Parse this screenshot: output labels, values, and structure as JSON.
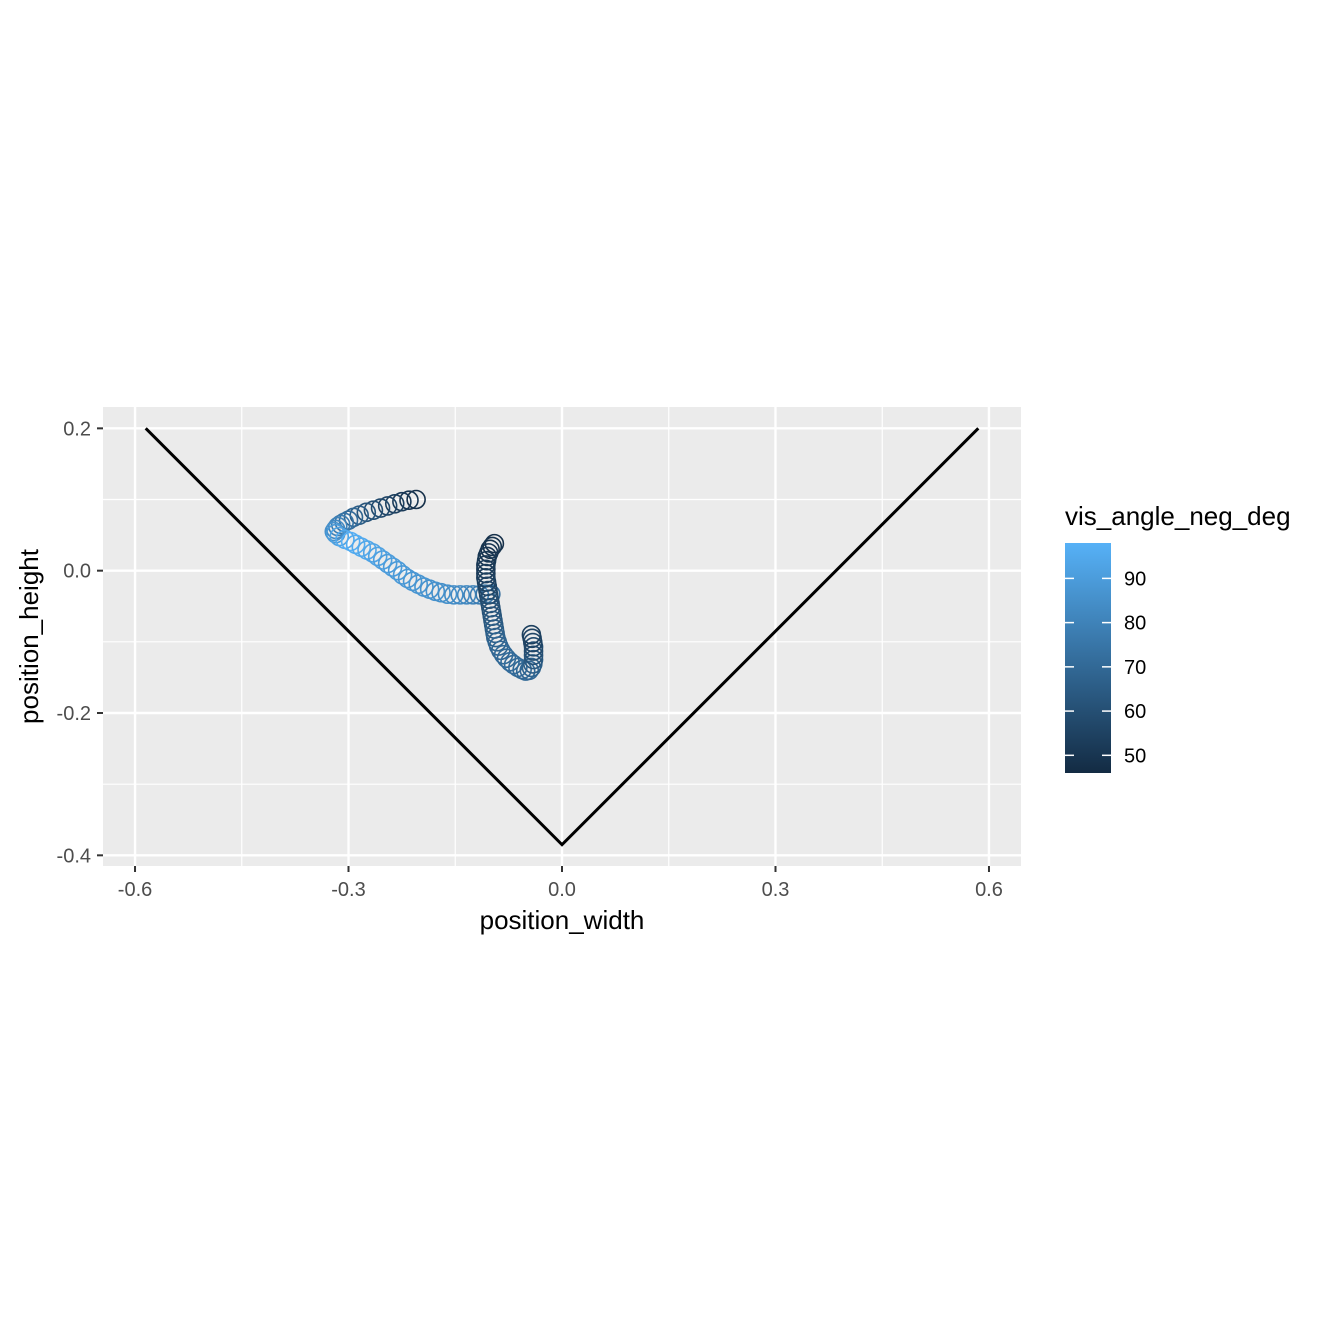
{
  "chart_data": {
    "type": "scatter",
    "title": "",
    "xlabel": "position_width",
    "ylabel": "position_height",
    "xlim": [
      -0.645,
      0.645
    ],
    "ylim": [
      -0.415,
      0.23
    ],
    "x_ticks": [
      -0.6,
      -0.3,
      0.0,
      0.3,
      0.6
    ],
    "x_tick_labels": [
      "-0.6",
      "-0.3",
      "0.0",
      "0.3",
      "0.6"
    ],
    "y_ticks": [
      -0.4,
      -0.2,
      0.0,
      0.2
    ],
    "y_tick_labels": [
      "-0.4",
      "-0.2",
      "0.0",
      "0.2"
    ],
    "grid": true,
    "background": "#ebebeb",
    "legend": {
      "title": "vis_angle_neg_deg",
      "position": "right",
      "type": "colorbar",
      "min": 46,
      "max": 98,
      "breaks": [
        50,
        60,
        70,
        80,
        90
      ],
      "break_labels": [
        "50",
        "60",
        "70",
        "80",
        "90"
      ],
      "color_low": "#132b43",
      "color_high": "#56b1f7"
    },
    "boundary_line": {
      "color": "#000000",
      "points": [
        [
          -0.585,
          0.2
        ],
        [
          0.0,
          -0.385
        ],
        [
          0.585,
          0.2
        ]
      ]
    },
    "points": [
      [
        -0.205,
        0.1,
        48
      ],
      [
        -0.215,
        0.099,
        50
      ],
      [
        -0.225,
        0.097,
        52
      ],
      [
        -0.235,
        0.094,
        54
      ],
      [
        -0.245,
        0.091,
        56
      ],
      [
        -0.255,
        0.088,
        58
      ],
      [
        -0.265,
        0.085,
        60
      ],
      [
        -0.275,
        0.082,
        62
      ],
      [
        -0.285,
        0.078,
        65
      ],
      [
        -0.293,
        0.075,
        68
      ],
      [
        -0.3,
        0.071,
        71
      ],
      [
        -0.306,
        0.068,
        74
      ],
      [
        -0.311,
        0.065,
        77
      ],
      [
        -0.315,
        0.062,
        80
      ],
      [
        -0.318,
        0.058,
        83
      ],
      [
        -0.32,
        0.055,
        86
      ],
      [
        -0.318,
        0.052,
        89
      ],
      [
        -0.313,
        0.048,
        92
      ],
      [
        -0.305,
        0.044,
        95
      ],
      [
        -0.297,
        0.041,
        97
      ],
      [
        -0.29,
        0.037,
        96
      ],
      [
        -0.282,
        0.033,
        95
      ],
      [
        -0.274,
        0.029,
        94
      ],
      [
        -0.266,
        0.025,
        93
      ],
      [
        -0.259,
        0.02,
        92
      ],
      [
        -0.252,
        0.015,
        91
      ],
      [
        -0.245,
        0.01,
        90
      ],
      [
        -0.238,
        0.005,
        90
      ],
      [
        -0.231,
        0.0,
        89
      ],
      [
        -0.224,
        -0.006,
        89
      ],
      [
        -0.217,
        -0.011,
        88
      ],
      [
        -0.21,
        -0.015,
        88
      ],
      [
        -0.202,
        -0.019,
        87
      ],
      [
        -0.194,
        -0.023,
        87
      ],
      [
        -0.186,
        -0.026,
        86
      ],
      [
        -0.178,
        -0.029,
        86
      ],
      [
        -0.17,
        -0.031,
        85
      ],
      [
        -0.161,
        -0.033,
        85
      ],
      [
        -0.152,
        -0.034,
        84
      ],
      [
        -0.143,
        -0.034,
        83
      ],
      [
        -0.134,
        -0.034,
        82
      ],
      [
        -0.125,
        -0.034,
        80
      ],
      [
        -0.116,
        -0.034,
        78
      ],
      [
        -0.108,
        -0.033,
        75
      ],
      [
        -0.1,
        -0.033,
        72
      ],
      [
        -0.095,
        0.038,
        48
      ],
      [
        -0.098,
        0.034,
        49
      ],
      [
        -0.101,
        0.03,
        49
      ],
      [
        -0.103,
        0.025,
        50
      ],
      [
        -0.105,
        0.02,
        50
      ],
      [
        -0.106,
        0.014,
        51
      ],
      [
        -0.107,
        0.008,
        51
      ],
      [
        -0.107,
        0.002,
        52
      ],
      [
        -0.107,
        -0.004,
        52
      ],
      [
        -0.107,
        -0.01,
        53
      ],
      [
        -0.106,
        -0.016,
        54
      ],
      [
        -0.105,
        -0.022,
        55
      ],
      [
        -0.104,
        -0.028,
        56
      ],
      [
        -0.103,
        -0.034,
        57
      ],
      [
        -0.102,
        -0.04,
        58
      ],
      [
        -0.101,
        -0.046,
        59
      ],
      [
        -0.1,
        -0.052,
        60
      ],
      [
        -0.099,
        -0.058,
        61
      ],
      [
        -0.098,
        -0.064,
        62
      ],
      [
        -0.097,
        -0.07,
        63
      ],
      [
        -0.096,
        -0.076,
        64
      ],
      [
        -0.095,
        -0.082,
        65
      ],
      [
        -0.094,
        -0.088,
        66
      ],
      [
        -0.093,
        -0.094,
        67
      ],
      [
        -0.091,
        -0.1,
        68
      ],
      [
        -0.089,
        -0.106,
        69
      ],
      [
        -0.086,
        -0.112,
        69
      ],
      [
        -0.082,
        -0.118,
        70
      ],
      [
        -0.078,
        -0.123,
        70
      ],
      [
        -0.073,
        -0.128,
        71
      ],
      [
        -0.068,
        -0.132,
        71
      ],
      [
        -0.062,
        -0.136,
        71
      ],
      [
        -0.056,
        -0.139,
        70
      ],
      [
        -0.051,
        -0.141,
        70
      ],
      [
        -0.046,
        -0.14,
        69
      ],
      [
        -0.043,
        -0.136,
        68
      ],
      [
        -0.041,
        -0.131,
        66
      ],
      [
        -0.04,
        -0.125,
        64
      ],
      [
        -0.04,
        -0.119,
        62
      ],
      [
        -0.04,
        -0.113,
        60
      ],
      [
        -0.04,
        -0.107,
        58
      ],
      [
        -0.041,
        -0.101,
        56
      ],
      [
        -0.042,
        -0.095,
        55
      ],
      [
        -0.043,
        -0.09,
        54
      ]
    ]
  }
}
